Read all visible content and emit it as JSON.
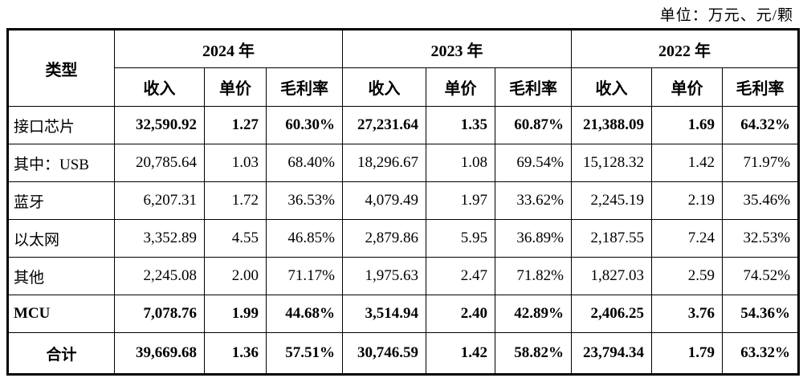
{
  "unit_label": "单位：万元、元/颗",
  "table": {
    "type_header": "类型",
    "year_groups": [
      {
        "year": "2024 年",
        "columns": [
          "收入",
          "单价",
          "毛利率"
        ]
      },
      {
        "year": "2023 年",
        "columns": [
          "收入",
          "单价",
          "毛利率"
        ]
      },
      {
        "year": "2022 年",
        "columns": [
          "收入",
          "单价",
          "毛利率"
        ]
      }
    ],
    "rows": [
      {
        "label": "接口芯片",
        "align": "left",
        "label_bold": false,
        "values_bold": true,
        "values": [
          "32,590.92",
          "1.27",
          "60.30%",
          "27,231.64",
          "1.35",
          "60.87%",
          "21,388.09",
          "1.69",
          "64.32%"
        ]
      },
      {
        "label": "其中：USB",
        "align": "left",
        "label_bold": false,
        "values_bold": false,
        "values": [
          "20,785.64",
          "1.03",
          "68.40%",
          "18,296.67",
          "1.08",
          "69.54%",
          "15,128.32",
          "1.42",
          "71.97%"
        ]
      },
      {
        "label": "蓝牙",
        "align": "left",
        "label_bold": false,
        "values_bold": false,
        "values": [
          "6,207.31",
          "1.72",
          "36.53%",
          "4,079.49",
          "1.97",
          "33.62%",
          "2,245.19",
          "2.19",
          "35.46%"
        ]
      },
      {
        "label": "以太网",
        "align": "left",
        "label_bold": false,
        "values_bold": false,
        "values": [
          "3,352.89",
          "4.55",
          "46.85%",
          "2,879.86",
          "5.95",
          "36.89%",
          "2,187.55",
          "7.24",
          "32.53%"
        ]
      },
      {
        "label": "其他",
        "align": "left",
        "label_bold": false,
        "values_bold": false,
        "values": [
          "2,245.08",
          "2.00",
          "71.17%",
          "1,975.63",
          "2.47",
          "71.82%",
          "1,827.03",
          "2.59",
          "74.52%"
        ]
      },
      {
        "label": "MCU",
        "align": "left",
        "label_bold": true,
        "values_bold": true,
        "values": [
          "7,078.76",
          "1.99",
          "44.68%",
          "3,514.94",
          "2.40",
          "42.89%",
          "2,406.25",
          "3.76",
          "54.36%"
        ]
      },
      {
        "label": "合计",
        "align": "center",
        "label_bold": true,
        "values_bold": true,
        "is_total": true,
        "values": [
          "39,669.68",
          "1.36",
          "57.51%",
          "30,746.59",
          "1.42",
          "58.82%",
          "23,794.34",
          "1.79",
          "63.32%"
        ]
      }
    ]
  },
  "colors": {
    "text": "#000000",
    "border": "#000000",
    "background": "#ffffff"
  }
}
